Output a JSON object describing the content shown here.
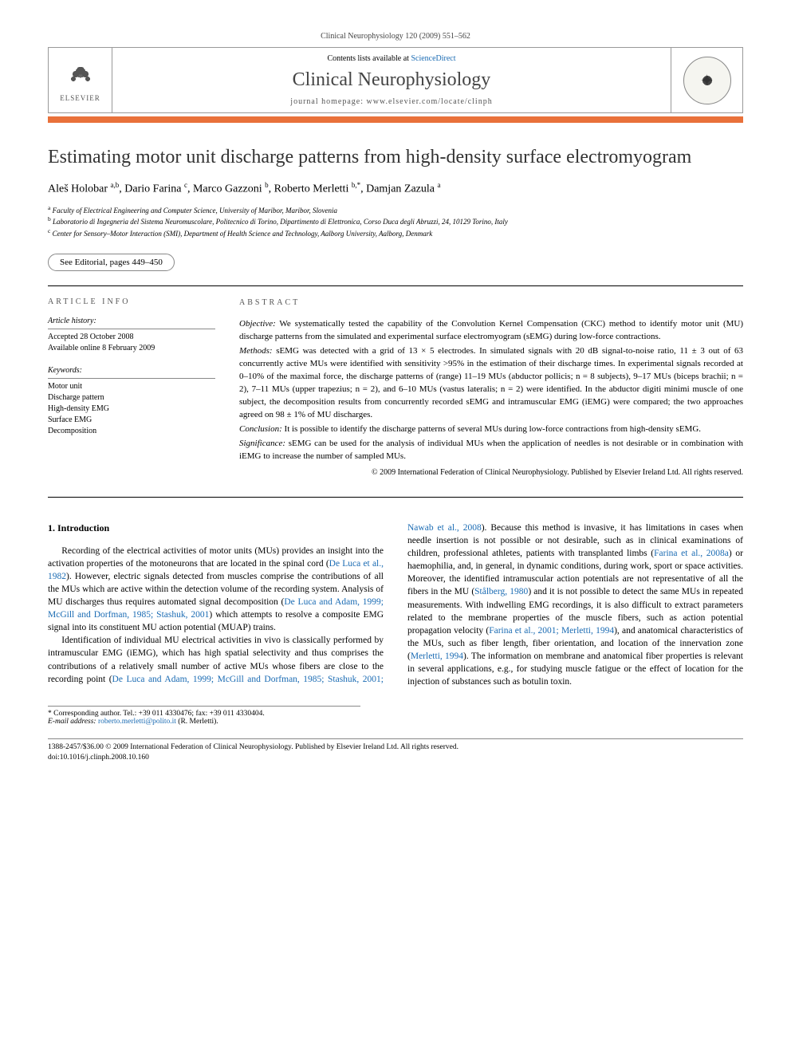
{
  "page": {
    "running_head": "Clinical Neurophysiology 120 (2009) 551–562",
    "contents_prefix": "Contents lists available at ",
    "contents_link": "ScienceDirect",
    "journal_name": "Clinical Neurophysiology",
    "homepage_prefix": "journal homepage: ",
    "homepage_url": "www.elsevier.com/locate/clinph",
    "elsevier_label": "ELSEVIER",
    "orange_bar_color": "#e9713a"
  },
  "article": {
    "title": "Estimating motor unit discharge patterns from high-density surface electromyogram",
    "authors_html": "Aleš Holobar <sup>a,b</sup>, Dario Farina <sup>c</sup>, Marco Gazzoni <sup>b</sup>, Roberto Merletti <sup>b,*</sup>, Damjan Zazula <sup>a</sup>",
    "affiliations": {
      "a": "Faculty of Electrical Engineering and Computer Science, University of Maribor, Maribor, Slovenia",
      "b": "Laboratorio di Ingegneria del Sistema Neuromuscolare, Politecnico di Torino, Dipartimento di Elettronica, Corso Duca degli Abruzzi, 24, 10129 Torino, Italy",
      "c": "Center for Sensory–Motor Interaction (SMI), Department of Health Science and Technology, Aalborg University, Aalborg, Denmark"
    },
    "editorial_note": "See Editorial, pages 449–450"
  },
  "info": {
    "heading": "ARTICLE INFO",
    "history_title": "Article history:",
    "history_accepted": "Accepted 28 October 2008",
    "history_online": "Available online 8 February 2009",
    "keywords_title": "Keywords:",
    "keywords": [
      "Motor unit",
      "Discharge pattern",
      "High-density EMG",
      "Surface EMG",
      "Decomposition"
    ]
  },
  "abstract": {
    "heading": "ABSTRACT",
    "objective_label": "Objective:",
    "objective": "We systematically tested the capability of the Convolution Kernel Compensation (CKC) method to identify motor unit (MU) discharge patterns from the simulated and experimental surface electromyogram (sEMG) during low-force contractions.",
    "methods_label": "Methods:",
    "methods": "sEMG was detected with a grid of 13 × 5 electrodes. In simulated signals with 20 dB signal-to-noise ratio, 11 ± 3 out of 63 concurrently active MUs were identified with sensitivity >95% in the estimation of their discharge times. In experimental signals recorded at 0–10% of the maximal force, the discharge patterns of (range) 11–19 MUs (abductor pollicis; n = 8 subjects), 9–17 MUs (biceps brachii; n = 2), 7–11 MUs (upper trapezius; n = 2), and 6–10 MUs (vastus lateralis; n = 2) were identified. In the abductor digiti minimi muscle of one subject, the decomposition results from concurrently recorded sEMG and intramuscular EMG (iEMG) were compared; the two approaches agreed on 98 ± 1% of MU discharges.",
    "conclusion_label": "Conclusion:",
    "conclusion": "It is possible to identify the discharge patterns of several MUs during low-force contractions from high-density sEMG.",
    "significance_label": "Significance:",
    "significance": "sEMG can be used for the analysis of individual MUs when the application of needles is not desirable or in combination with iEMG to increase the number of sampled MUs.",
    "copyright": "© 2009 International Federation of Clinical Neurophysiology. Published by Elsevier Ireland Ltd. All rights reserved."
  },
  "body": {
    "section_number": "1.",
    "section_title": "Introduction",
    "para1_a": "Recording of the electrical activities of motor units (MUs) provides an insight into the activation properties of the motoneurons that are located in the spinal cord (",
    "para1_ref1": "De Luca et al., 1982",
    "para1_b": "). However, electric signals detected from muscles comprise the contributions of all the MUs which are active within the detection volume of the recording system. Analysis of MU discharges thus requires automated signal decomposition (",
    "para1_ref2": "De Luca and Adam, 1999; McGill and Dorfman, 1985; Stashuk, 2001",
    "para1_c": ") which attempts to resolve a composite EMG signal into its constituent MU action potential (MUAP) trains.",
    "para2_a": "Identification of individual MU electrical activities in vivo is classically performed by intramuscular EMG (iEMG), which has high spatial selectivity and thus comprises the contributions of a relatively small number of active MUs whose fibers are close to",
    "para3_a": "the recording point (",
    "para3_ref1": "De Luca and Adam, 1999; McGill and Dorfman, 1985; Stashuk, 2001; Nawab et al., 2008",
    "para3_b": "). Because this method is invasive, it has limitations in cases when needle insertion is not possible or not desirable, such as in clinical examinations of children, professional athletes, patients with transplanted limbs (",
    "para3_ref2": "Farina et al., 2008a",
    "para3_c": ") or haemophilia, and, in general, in dynamic conditions, during work, sport or space activities. Moreover, the identified intramuscular action potentials are not representative of all the fibers in the MU (",
    "para3_ref3": "Stålberg, 1980",
    "para3_d": ") and it is not possible to detect the same MUs in repeated measurements. With indwelling EMG recordings, it is also difficult to extract parameters related to the membrane properties of the muscle fibers, such as action potential propagation velocity (",
    "para3_ref4": "Farina et al., 2001; Merletti, 1994",
    "para3_e": "), and anatomical characteristics of the MUs, such as fiber length, fiber orientation, and location of the innervation zone (",
    "para3_ref5": "Merletti, 1994",
    "para3_f": "). The information on membrane and anatomical fiber properties is relevant in several applications, e.g., for studying muscle fatigue or the effect of location for the injection of substances such as botulin toxin."
  },
  "footer": {
    "corr_line": "* Corresponding author. Tel.: +39 011 4330476; fax: +39 011 4330404.",
    "email_label": "E-mail address:",
    "email": "roberto.merletti@polito.it",
    "email_name": "(R. Merletti).",
    "issn_line": "1388-2457/$36.00 © 2009 International Federation of Clinical Neurophysiology. Published by Elsevier Ireland Ltd. All rights reserved.",
    "doi_line": "doi:10.1016/j.clinph.2008.10.160"
  }
}
